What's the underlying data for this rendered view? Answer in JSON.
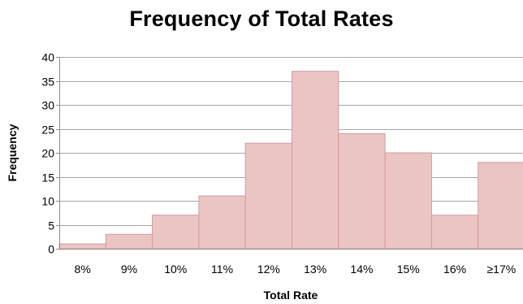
{
  "chart_data": {
    "type": "bar",
    "title": "Frequency of Total Rates",
    "xlabel": "Total Rate",
    "ylabel": "Frequency",
    "categories": [
      "8%",
      "9%",
      "10%",
      "11%",
      "12%",
      "13%",
      "14%",
      "15%",
      "16%",
      "≥17%"
    ],
    "values": [
      1,
      3,
      7,
      11,
      22,
      37,
      24,
      20,
      7,
      18
    ],
    "ylim": [
      0,
      40
    ],
    "yticks": [
      0,
      5,
      10,
      15,
      20,
      25,
      30,
      35,
      40
    ],
    "grid": true,
    "legend": "none",
    "colors": {
      "bar_fill": "#ebc4c4",
      "bar_edge": "#d39b9b",
      "grid": "#a6a6a6",
      "axis": "#8c8c8c"
    }
  }
}
